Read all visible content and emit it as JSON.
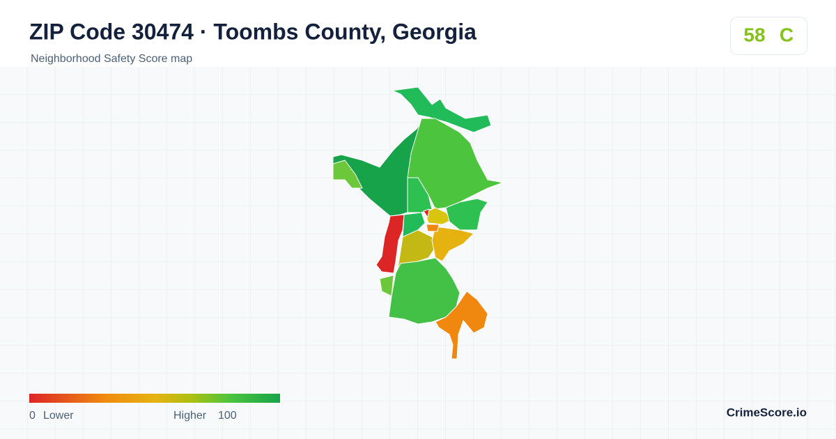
{
  "header": {
    "title": "ZIP Code 30474 · Toombs County, Georgia",
    "subtitle": "Neighborhood Safety Score map"
  },
  "score": {
    "value": 58,
    "grade": "C"
  },
  "legend": {
    "min": 0,
    "min_label": "Lower",
    "max_label": "Higher",
    "max": 100
  },
  "brand": "CrimeScore.io"
}
